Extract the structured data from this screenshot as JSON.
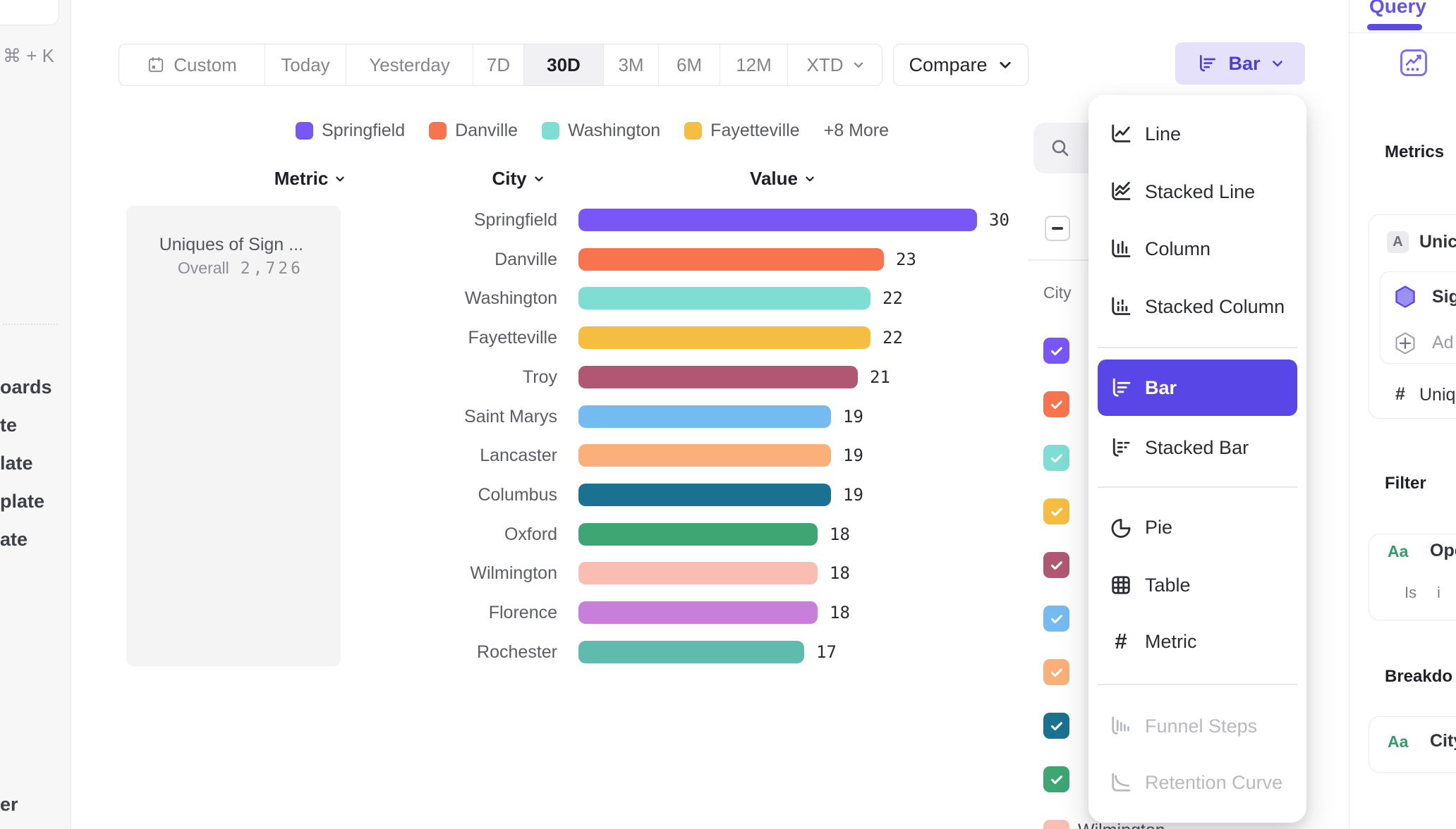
{
  "sidebar": {
    "shortcut": "⌘ + K",
    "items": [
      "oards",
      "te",
      "late",
      "plate",
      "ate",
      "er"
    ]
  },
  "toolbar": {
    "date_ranges": [
      "Custom",
      "Today",
      "Yesterday",
      "7D",
      "30D",
      "3M",
      "6M",
      "12M",
      "XTD"
    ],
    "selected_range": "30D",
    "compare_label": "Compare",
    "chart_type_label": "Bar"
  },
  "legend": {
    "items": [
      {
        "label": "Springfield",
        "color": "#7957F7"
      },
      {
        "label": "Danville",
        "color": "#F7744F"
      },
      {
        "label": "Washington",
        "color": "#7EDED3"
      },
      {
        "label": "Fayetteville",
        "color": "#F5BE41"
      }
    ],
    "more_label": "+8 More"
  },
  "table": {
    "metric_header": "Metric",
    "city_header": "City",
    "value_header": "Value",
    "metric_card": {
      "title": "Uniques of Sign ...",
      "overall_label": "Overall",
      "overall_value": "2,726"
    }
  },
  "chart_data": {
    "type": "bar",
    "title": "Uniques of Sign ...",
    "categories": [
      "Springfield",
      "Danville",
      "Washington",
      "Fayetteville",
      "Troy",
      "Saint Marys",
      "Lancaster",
      "Columbus",
      "Oxford",
      "Wilmington",
      "Florence",
      "Rochester"
    ],
    "values": [
      30,
      23,
      22,
      22,
      21,
      19,
      19,
      19,
      18,
      18,
      18,
      17
    ],
    "colors": [
      "#7957F7",
      "#F7744F",
      "#7EDED3",
      "#F5BE41",
      "#B05873",
      "#74BBF2",
      "#FBB079",
      "#1A7190",
      "#3DA673",
      "#FABDB2",
      "#C77FDB",
      "#60BBAF"
    ],
    "xlabel": "Value",
    "ylabel": "City",
    "xlim": [
      0,
      30
    ],
    "overall_label": "Overall",
    "overall_value": "2,726"
  },
  "city_panel": {
    "column_label": "City",
    "checkbox_colors": [
      "#7957F7",
      "#F7744F",
      "#7EDED3",
      "#F5BE41",
      "#B05873",
      "#74BBF2",
      "#FBB079",
      "#1A7190",
      "#3DA673",
      "#FABDB2"
    ],
    "partial_city_label": "Wilmington"
  },
  "chart_type_menu": {
    "items": [
      {
        "label": "Line",
        "icon": "line-icon",
        "state": "normal"
      },
      {
        "label": "Stacked Line",
        "icon": "stacked-line-icon",
        "state": "normal"
      },
      {
        "label": "Column",
        "icon": "column-icon",
        "state": "normal"
      },
      {
        "label": "Stacked Column",
        "icon": "stacked-column-icon",
        "state": "normal"
      },
      {
        "label": "Bar",
        "icon": "bar-icon",
        "state": "selected"
      },
      {
        "label": "Stacked Bar",
        "icon": "stacked-bar-icon",
        "state": "normal"
      },
      {
        "label": "Pie",
        "icon": "pie-icon",
        "state": "normal"
      },
      {
        "label": "Table",
        "icon": "table-icon",
        "state": "normal"
      },
      {
        "label": "Metric",
        "icon": "metric-icon",
        "state": "normal"
      },
      {
        "label": "Funnel Steps",
        "icon": "funnel-steps-icon",
        "state": "disabled"
      },
      {
        "label": "Retention Curve",
        "icon": "retention-curve-icon",
        "state": "disabled"
      }
    ]
  },
  "query_panel": {
    "tab_label": "Query",
    "metrics_heading": "Metrics",
    "metric_badge": "A",
    "metric_name": "Unic",
    "event_name": "Sig",
    "add_label": "Ad",
    "measure_prefix": "#",
    "measure_name": "Uniqu",
    "filter_heading": "Filter",
    "filter_type_badge": "Aa",
    "filter_field": "Ope",
    "filter_operator": "Is",
    "filter_value": "i",
    "breakdown_heading": "Breakdo",
    "breakdown_type_badge": "Aa",
    "breakdown_field": "City"
  },
  "colors": {
    "accent_purple": "#5946e6",
    "accent_purple_light": "#e6e1fb",
    "selected_segment_bg": "#f1f1f3",
    "green_badge": "#2f9e6e"
  }
}
